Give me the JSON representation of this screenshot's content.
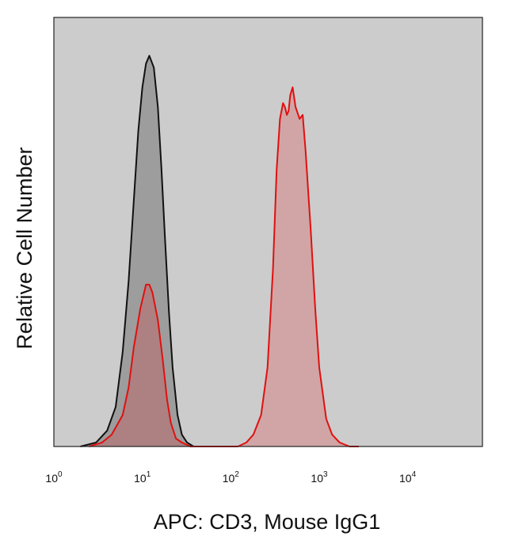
{
  "chart_data": {
    "type": "area",
    "xscale": "log",
    "xlim": [
      1,
      70000
    ],
    "ylim": [
      0,
      1
    ],
    "xlabel": "APC: CD3, Mouse IgG1",
    "ylabel": "Relative Cell Number",
    "xticks": [
      {
        "value": 1,
        "base": "10",
        "exp": "0"
      },
      {
        "value": 10,
        "base": "10",
        "exp": "1"
      },
      {
        "value": 100,
        "base": "10",
        "exp": "2"
      },
      {
        "value": 1000,
        "base": "10",
        "exp": "3"
      },
      {
        "value": 10000,
        "base": "10",
        "exp": "4"
      }
    ],
    "plot_background": "#cccccc",
    "grid": false,
    "series": [
      {
        "key": "black",
        "line_color": "#111111",
        "fill_color": "#444444",
        "fill_opacity": 0.35,
        "x": [
          2.0,
          3.0,
          4.0,
          5.0,
          6.0,
          7.0,
          8.0,
          9.0,
          10.0,
          11.0,
          12.0,
          13.5,
          15.0,
          16.5,
          18.0,
          20.0,
          22.0,
          25.0,
          28.0,
          32.0,
          38.0,
          60.0
        ],
        "y": [
          0.0,
          0.01,
          0.04,
          0.1,
          0.24,
          0.42,
          0.62,
          0.8,
          0.91,
          0.97,
          0.99,
          0.96,
          0.86,
          0.7,
          0.53,
          0.34,
          0.2,
          0.08,
          0.03,
          0.01,
          0.0,
          0.0
        ]
      },
      {
        "key": "red",
        "line_color": "#e01010",
        "fill_color": "#e03030",
        "fill_opacity": 0.25,
        "x": [
          2.5,
          3.5,
          4.5,
          6.0,
          7.0,
          8.0,
          9.5,
          11.0,
          12.0,
          13.0,
          15.0,
          17.0,
          19.0,
          21.0,
          24.0,
          28.0,
          35.0,
          60.0,
          120.0,
          150.0,
          180.0,
          220.0,
          260.0,
          300.0,
          330.0,
          360.0,
          390.0,
          410.0,
          430.0,
          450.0,
          470.0,
          500.0,
          540.0,
          600.0,
          650.0,
          700.0,
          800.0,
          900.0,
          1000.0,
          1200.0,
          1400.0,
          1700.0,
          2200.0,
          2800.0
        ],
        "y": [
          0.0,
          0.01,
          0.03,
          0.08,
          0.15,
          0.25,
          0.35,
          0.41,
          0.41,
          0.39,
          0.32,
          0.22,
          0.12,
          0.06,
          0.02,
          0.01,
          0.0,
          0.0,
          0.0,
          0.01,
          0.03,
          0.08,
          0.2,
          0.45,
          0.7,
          0.83,
          0.87,
          0.86,
          0.84,
          0.85,
          0.89,
          0.91,
          0.86,
          0.83,
          0.84,
          0.75,
          0.55,
          0.35,
          0.2,
          0.07,
          0.03,
          0.01,
          0.0,
          0.0
        ]
      }
    ]
  }
}
